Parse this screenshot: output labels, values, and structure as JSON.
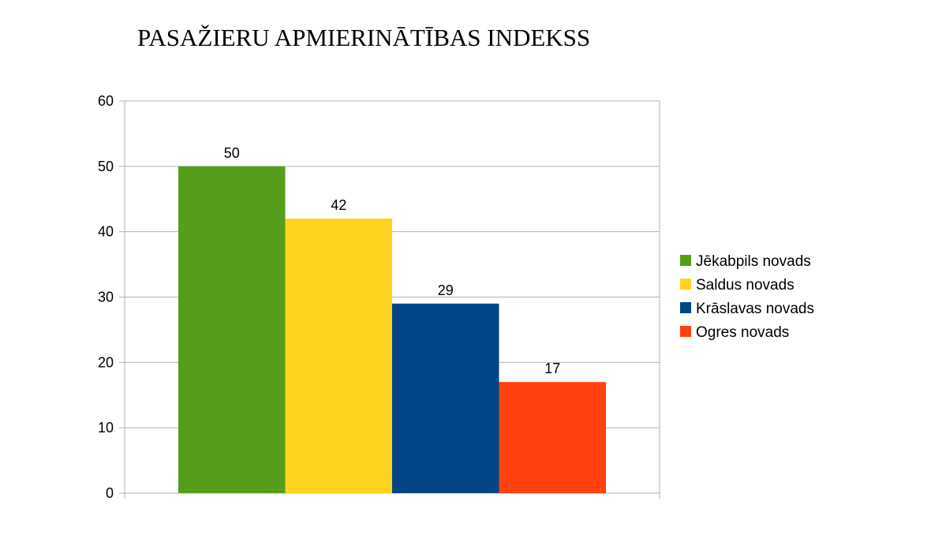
{
  "chart_data": {
    "type": "bar",
    "title": "PASAŽIERU APMIERINĀTĪBAS INDEKSS",
    "series": [
      {
        "name": "Jēkabpils novads",
        "value": 50,
        "color": "#579D1C"
      },
      {
        "name": "Saldus novads",
        "value": 42,
        "color": "#FFD320"
      },
      {
        "name": "Krāslavas novads",
        "value": 29,
        "color": "#004586"
      },
      {
        "name": "Ogres novads",
        "value": 17,
        "color": "#FF420E"
      }
    ],
    "ylim": [
      0,
      60
    ],
    "yticks": [
      "0",
      "10",
      "20",
      "30",
      "40",
      "50",
      "60"
    ],
    "grid": true,
    "legend": "right"
  }
}
